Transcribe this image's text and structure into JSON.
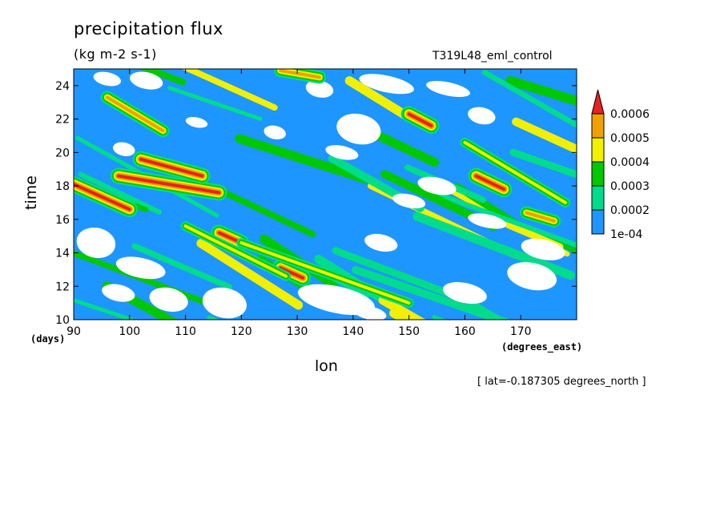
{
  "chart_data": {
    "type": "heatmap",
    "title": "precipitation flux",
    "units": "(kg m-2 s-1)",
    "run_label": "T319L48_eml_control",
    "xlabel": "lon",
    "xunits": "(degrees_east)",
    "ylabel": "time",
    "yunits": "(days)",
    "footnote": "[ lat=-0.187305 degrees_north ]",
    "xlim": [
      90,
      180
    ],
    "ylim": [
      10,
      25
    ],
    "x_ticks": [
      "90",
      "100",
      "110",
      "120",
      "130",
      "140",
      "150",
      "160",
      "170"
    ],
    "y_ticks": [
      "10",
      "12",
      "14",
      "16",
      "18",
      "20",
      "22",
      "24"
    ],
    "x_tick_values": [
      90,
      100,
      110,
      120,
      130,
      140,
      150,
      160,
      170
    ],
    "y_tick_values": [
      10,
      12,
      14,
      16,
      18,
      20,
      22,
      24
    ],
    "colorbar": {
      "levels": [
        "1e-04",
        "0.0002",
        "0.0003",
        "0.0004",
        "0.0005",
        "0.0006"
      ],
      "colors": [
        "#1e96ff",
        "#00dc8c",
        "#00c800",
        "#f0f000",
        "#f0a000",
        "#e62222"
      ],
      "extend": "max"
    },
    "streaks": [
      {
        "lon0": 90,
        "t0": 18.1,
        "lon1": 100,
        "t1": 16.6,
        "level": 5
      },
      {
        "lon0": 98,
        "t0": 18.6,
        "lon1": 116,
        "t1": 17.6,
        "level": 5
      },
      {
        "lon0": 102,
        "t0": 19.6,
        "lon1": 113,
        "t1": 18.6,
        "level": 5
      },
      {
        "lon0": 116,
        "t0": 15.2,
        "lon1": 120,
        "t1": 14.6,
        "level": 5
      },
      {
        "lon0": 127,
        "t0": 13.1,
        "lon1": 131,
        "t1": 12.5,
        "level": 5
      },
      {
        "lon0": 150,
        "t0": 22.3,
        "lon1": 154,
        "t1": 21.6,
        "level": 5
      },
      {
        "lon0": 162,
        "t0": 18.6,
        "lon1": 167,
        "t1": 17.8,
        "level": 5
      },
      {
        "lon0": 171,
        "t0": 16.4,
        "lon1": 176,
        "t1": 15.9,
        "level": 4
      },
      {
        "lon0": 127,
        "t0": 24.9,
        "lon1": 134,
        "t1": 24.5,
        "level": 4
      },
      {
        "lon0": 96,
        "t0": 23.3,
        "lon1": 106,
        "t1": 21.3,
        "level": 4
      },
      {
        "lon0": 160,
        "t0": 20.6,
        "lon1": 178,
        "t1": 17.0,
        "level": 3
      },
      {
        "lon0": 120,
        "t0": 14.6,
        "lon1": 150,
        "t1": 11.0,
        "level": 3
      },
      {
        "lon0": 110,
        "t0": 15.6,
        "lon1": 128,
        "t1": 12.6,
        "level": 3
      }
    ],
    "dry_regions": [
      {
        "lon": 94,
        "t": 14.6,
        "rlon": 3.5,
        "rt": 0.9
      },
      {
        "lon": 102,
        "t": 13.1,
        "rlon": 4.5,
        "rt": 0.6
      },
      {
        "lon": 98,
        "t": 11.6,
        "rlon": 3.0,
        "rt": 0.5
      },
      {
        "lon": 107,
        "t": 11.2,
        "rlon": 3.5,
        "rt": 0.7
      },
      {
        "lon": 117,
        "t": 11.0,
        "rlon": 4.0,
        "rt": 0.9
      },
      {
        "lon": 137,
        "t": 11.2,
        "rlon": 7.0,
        "rt": 0.8
      },
      {
        "lon": 143,
        "t": 10.4,
        "rlon": 3.0,
        "rt": 0.4
      },
      {
        "lon": 160,
        "t": 11.6,
        "rlon": 4.0,
        "rt": 0.6
      },
      {
        "lon": 172,
        "t": 12.6,
        "rlon": 4.5,
        "rt": 0.8
      },
      {
        "lon": 96,
        "t": 24.4,
        "rlon": 2.5,
        "rt": 0.4
      },
      {
        "lon": 103,
        "t": 24.3,
        "rlon": 3.0,
        "rt": 0.5
      },
      {
        "lon": 134,
        "t": 23.8,
        "rlon": 2.5,
        "rt": 0.5
      },
      {
        "lon": 146,
        "t": 24.1,
        "rlon": 5.0,
        "rt": 0.5
      },
      {
        "lon": 157,
        "t": 23.8,
        "rlon": 4.0,
        "rt": 0.4
      },
      {
        "lon": 141,
        "t": 21.4,
        "rlon": 4.0,
        "rt": 0.9
      },
      {
        "lon": 163,
        "t": 22.2,
        "rlon": 2.5,
        "rt": 0.5
      },
      {
        "lon": 99,
        "t": 20.2,
        "rlon": 2.0,
        "rt": 0.4
      },
      {
        "lon": 138,
        "t": 20.0,
        "rlon": 3.0,
        "rt": 0.4
      },
      {
        "lon": 155,
        "t": 18.0,
        "rlon": 3.5,
        "rt": 0.5
      },
      {
        "lon": 150,
        "t": 17.1,
        "rlon": 3.0,
        "rt": 0.4
      },
      {
        "lon": 164,
        "t": 15.9,
        "rlon": 3.5,
        "rt": 0.4
      },
      {
        "lon": 174,
        "t": 14.2,
        "rlon": 4.0,
        "rt": 0.6
      },
      {
        "lon": 145,
        "t": 14.6,
        "rlon": 3.0,
        "rt": 0.5
      },
      {
        "lon": 126,
        "t": 21.2,
        "rlon": 2.0,
        "rt": 0.4
      },
      {
        "lon": 112,
        "t": 21.8,
        "rlon": 2.0,
        "rt": 0.3
      }
    ]
  }
}
